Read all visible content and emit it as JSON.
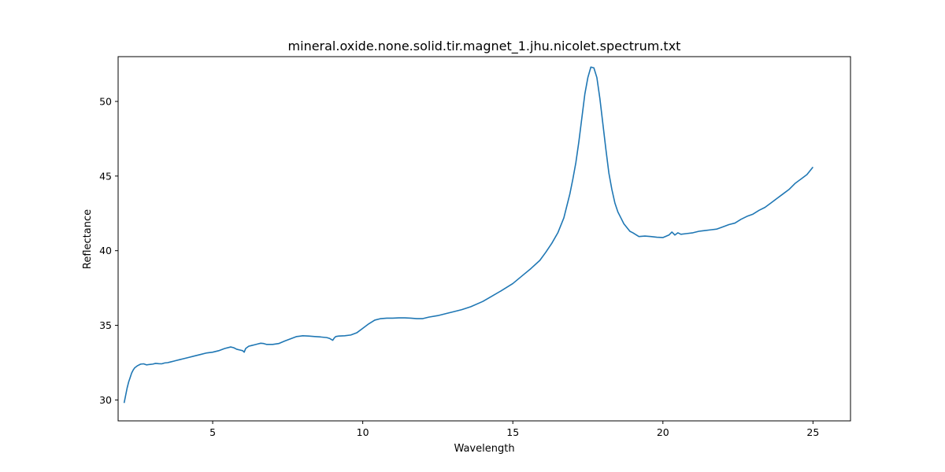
{
  "chart_data": {
    "type": "line",
    "title": "mineral.oxide.none.solid.tir.magnet_1.jhu.nicolet.spectrum.txt",
    "xlabel": "Wavelength",
    "ylabel": "Reflectance",
    "xlim": [
      1.85,
      26.25
    ],
    "ylim": [
      28.6,
      53.0
    ],
    "xticks": [
      5,
      10,
      15,
      20,
      25
    ],
    "yticks": [
      30,
      35,
      40,
      45,
      50
    ],
    "grid": false,
    "line_color": "#1f77b4",
    "series": [
      {
        "x": [
          2.05,
          2.1,
          2.15,
          2.2,
          2.25,
          2.3,
          2.35,
          2.4,
          2.5,
          2.6,
          2.7,
          2.8,
          2.9,
          3.0,
          3.1,
          3.2,
          3.3,
          3.4,
          3.5,
          3.6,
          3.7,
          3.8,
          3.9,
          4.0,
          4.2,
          4.4,
          4.6,
          4.8,
          5.0,
          5.2,
          5.4,
          5.6,
          5.7,
          5.8,
          5.9,
          6.0,
          6.05,
          6.1,
          6.2,
          6.3,
          6.4,
          6.5,
          6.6,
          6.7,
          6.8,
          7.0,
          7.2,
          7.4,
          7.6,
          7.8,
          8.0,
          8.2,
          8.4,
          8.6,
          8.8,
          8.9,
          9.0,
          9.05,
          9.1,
          9.2,
          9.4,
          9.6,
          9.8,
          10.0,
          10.2,
          10.4,
          10.6,
          10.8,
          11.0,
          11.2,
          11.4,
          11.6,
          11.8,
          12.0,
          12.2,
          12.5,
          12.8,
          13.0,
          13.3,
          13.6,
          14.0,
          14.3,
          14.6,
          15.0,
          15.3,
          15.6,
          15.9,
          16.1,
          16.3,
          16.5,
          16.7,
          16.9,
          17.0,
          17.1,
          17.2,
          17.3,
          17.4,
          17.5,
          17.6,
          17.7,
          17.8,
          17.9,
          18.0,
          18.1,
          18.2,
          18.3,
          18.4,
          18.5,
          18.6,
          18.7,
          18.8,
          18.9,
          19.0,
          19.2,
          19.4,
          19.6,
          19.8,
          20.0,
          20.2,
          20.3,
          20.4,
          20.5,
          20.6,
          20.8,
          21.0,
          21.2,
          21.4,
          21.6,
          21.8,
          22.0,
          22.2,
          22.4,
          22.6,
          22.8,
          23.0,
          23.2,
          23.4,
          23.6,
          23.8,
          24.0,
          24.2,
          24.4,
          24.6,
          24.8,
          25.0
        ],
        "y": [
          29.8,
          30.3,
          30.8,
          31.2,
          31.5,
          31.8,
          32.0,
          32.15,
          32.3,
          32.4,
          32.42,
          32.35,
          32.38,
          32.4,
          32.45,
          32.43,
          32.42,
          32.48,
          32.5,
          32.55,
          32.6,
          32.65,
          32.7,
          32.75,
          32.85,
          32.95,
          33.05,
          33.15,
          33.2,
          33.3,
          33.45,
          33.55,
          33.5,
          33.4,
          33.35,
          33.3,
          33.2,
          33.45,
          33.6,
          33.65,
          33.7,
          33.75,
          33.8,
          33.78,
          33.72,
          33.72,
          33.78,
          33.95,
          34.1,
          34.25,
          34.3,
          34.28,
          34.25,
          34.22,
          34.18,
          34.12,
          34.0,
          34.15,
          34.25,
          34.28,
          34.3,
          34.35,
          34.5,
          34.8,
          35.1,
          35.35,
          35.45,
          35.48,
          35.48,
          35.5,
          35.5,
          35.48,
          35.45,
          35.45,
          35.55,
          35.65,
          35.8,
          35.9,
          36.05,
          36.25,
          36.6,
          36.95,
          37.3,
          37.8,
          38.3,
          38.8,
          39.35,
          39.9,
          40.5,
          41.2,
          42.2,
          43.8,
          44.8,
          45.9,
          47.3,
          48.9,
          50.5,
          51.6,
          52.3,
          52.25,
          51.6,
          50.2,
          48.5,
          46.8,
          45.2,
          44.1,
          43.2,
          42.6,
          42.2,
          41.8,
          41.55,
          41.3,
          41.2,
          40.95,
          40.98,
          40.95,
          40.9,
          40.88,
          41.05,
          41.25,
          41.05,
          41.2,
          41.1,
          41.15,
          41.2,
          41.3,
          41.35,
          41.4,
          41.45,
          41.6,
          41.75,
          41.85,
          42.1,
          42.3,
          42.45,
          42.7,
          42.9,
          43.2,
          43.5,
          43.8,
          44.1,
          44.5,
          44.8,
          45.1,
          45.6
        ]
      }
    ]
  }
}
